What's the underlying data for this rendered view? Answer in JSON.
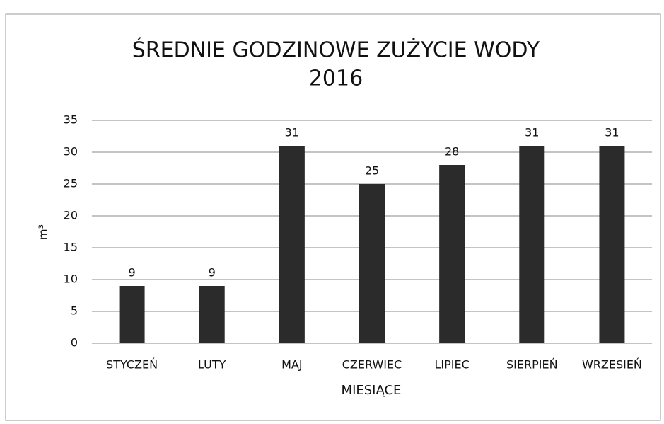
{
  "chart_data": {
    "type": "bar",
    "title": "ŚREDNIE GODZINOWE ZUŻYCIE WODY",
    "subtitle": "2016",
    "categories": [
      "STYCZEŃ",
      "LUTY",
      "MAJ",
      "CZERWIEC",
      "LIPIEC",
      "SIERPIEŃ",
      "WRZESIEŃ"
    ],
    "values": [
      9,
      9,
      31,
      25,
      28,
      31,
      31
    ],
    "color": "#2b2b2b",
    "ylabel": "m³",
    "xlabel": "MIESIĄCE",
    "ylim": [
      0,
      35
    ],
    "yticks": [
      0,
      5,
      10,
      15,
      20,
      25,
      30,
      35
    ],
    "grid": true
  }
}
